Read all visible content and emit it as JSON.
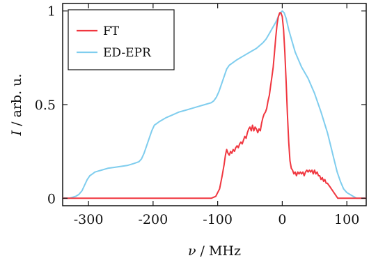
{
  "chart_data": {
    "type": "line",
    "xlabel_var": "ν",
    "xlabel_unit": "/ MHz",
    "ylabel_var": "I",
    "ylabel_unit": "/ arb. u.",
    "xlim": [
      -340,
      130
    ],
    "ylim": [
      -0.04,
      1.04
    ],
    "xticks": [
      -300,
      -200,
      -100,
      0,
      100
    ],
    "xtick_labels": [
      "-300",
      "-200",
      "-100",
      "0",
      "100"
    ],
    "yticks": [
      0,
      0.5,
      1
    ],
    "ytick_labels": [
      "0",
      "0.5",
      "1"
    ],
    "grid": false,
    "legend_position": "top-left",
    "series": [
      {
        "name": "FT",
        "color": "#f0363f",
        "x": [
          -340,
          -320,
          -300,
          -250,
          -200,
          -150,
          -120,
          -110,
          -103,
          -97,
          -93,
          -90,
          -88,
          -86,
          -84,
          -82,
          -80,
          -78,
          -76,
          -74,
          -72,
          -70,
          -68,
          -66,
          -64,
          -62,
          -60,
          -58,
          -56,
          -54,
          -52,
          -50,
          -48,
          -46,
          -44,
          -42,
          -40,
          -38,
          -36,
          -34,
          -32,
          -30,
          -28,
          -26,
          -24,
          -22,
          -20,
          -18,
          -16,
          -14,
          -12,
          -10,
          -8,
          -6,
          -4,
          -2,
          0,
          2,
          4,
          6,
          8,
          10,
          12,
          14,
          16,
          18,
          20,
          22,
          24,
          26,
          28,
          30,
          32,
          34,
          36,
          38,
          40,
          42,
          44,
          46,
          48,
          50,
          52,
          54,
          56,
          58,
          60,
          62,
          64,
          66,
          68,
          70,
          72,
          74,
          76,
          78,
          80,
          82,
          84,
          86,
          88,
          90,
          95,
          100,
          110,
          120,
          130
        ],
        "y": [
          0.0,
          0.0,
          0.0,
          0.0,
          0.0,
          0.0,
          0.0,
          0.0,
          0.01,
          0.05,
          0.12,
          0.18,
          0.23,
          0.26,
          0.24,
          0.23,
          0.25,
          0.24,
          0.26,
          0.25,
          0.27,
          0.28,
          0.27,
          0.29,
          0.3,
          0.29,
          0.31,
          0.33,
          0.32,
          0.35,
          0.37,
          0.38,
          0.36,
          0.39,
          0.36,
          0.38,
          0.37,
          0.35,
          0.37,
          0.36,
          0.4,
          0.43,
          0.45,
          0.46,
          0.48,
          0.52,
          0.55,
          0.6,
          0.65,
          0.7,
          0.78,
          0.86,
          0.93,
          0.97,
          0.99,
          0.99,
          0.97,
          0.9,
          0.78,
          0.62,
          0.45,
          0.3,
          0.2,
          0.16,
          0.15,
          0.13,
          0.14,
          0.12,
          0.14,
          0.13,
          0.14,
          0.13,
          0.14,
          0.12,
          0.14,
          0.15,
          0.14,
          0.15,
          0.14,
          0.15,
          0.13,
          0.15,
          0.13,
          0.14,
          0.12,
          0.12,
          0.1,
          0.11,
          0.09,
          0.1,
          0.08,
          0.08,
          0.07,
          0.06,
          0.05,
          0.04,
          0.03,
          0.02,
          0.01,
          0.0,
          0.0,
          0.0,
          0.0,
          0.0,
          0.0,
          0.0,
          0.0
        ]
      },
      {
        "name": "ED-EPR",
        "color": "#7fcdee",
        "x": [
          -340,
          -330,
          -320,
          -315,
          -310,
          -306,
          -302,
          -298,
          -294,
          -290,
          -285,
          -280,
          -270,
          -260,
          -250,
          -240,
          -230,
          -222,
          -218,
          -214,
          -210,
          -206,
          -202,
          -198,
          -194,
          -190,
          -185,
          -180,
          -170,
          -160,
          -150,
          -140,
          -130,
          -120,
          -110,
          -106,
          -102,
          -98,
          -94,
          -90,
          -86,
          -82,
          -78,
          -74,
          -70,
          -65,
          -60,
          -50,
          -40,
          -30,
          -25,
          -20,
          -15,
          -10,
          -6,
          -3,
          0,
          3,
          6,
          10,
          15,
          20,
          25,
          30,
          40,
          50,
          60,
          70,
          75,
          80,
          85,
          90,
          95,
          100,
          105,
          110,
          115,
          120,
          125,
          130
        ],
        "y": [
          0.0,
          0.0,
          0.01,
          0.02,
          0.04,
          0.07,
          0.1,
          0.12,
          0.13,
          0.14,
          0.145,
          0.15,
          0.16,
          0.165,
          0.17,
          0.175,
          0.185,
          0.195,
          0.21,
          0.24,
          0.28,
          0.32,
          0.36,
          0.39,
          0.4,
          0.41,
          0.42,
          0.43,
          0.445,
          0.46,
          0.47,
          0.48,
          0.49,
          0.5,
          0.51,
          0.52,
          0.54,
          0.57,
          0.61,
          0.65,
          0.69,
          0.71,
          0.72,
          0.73,
          0.74,
          0.75,
          0.76,
          0.78,
          0.8,
          0.83,
          0.85,
          0.88,
          0.91,
          0.94,
          0.97,
          0.99,
          1.0,
          0.99,
          0.96,
          0.9,
          0.84,
          0.78,
          0.74,
          0.7,
          0.64,
          0.56,
          0.46,
          0.35,
          0.28,
          0.21,
          0.14,
          0.09,
          0.05,
          0.03,
          0.02,
          0.01,
          0.0,
          0.0,
          0.0,
          0.0
        ]
      }
    ]
  }
}
